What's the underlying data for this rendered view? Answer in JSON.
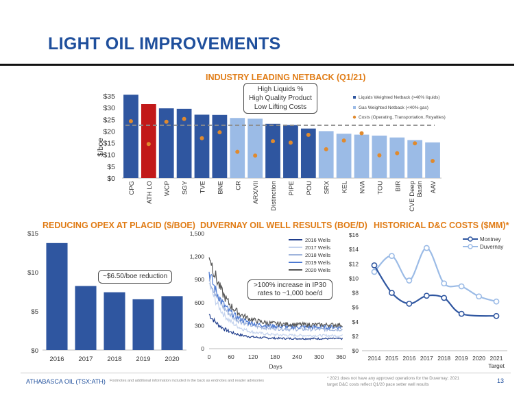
{
  "page": {
    "title": "LIGHT OIL IMPROVEMENTS",
    "footer_left": "ATHABASCA OIL (TSX:ATH)",
    "footer_mid": "Footnotes and additional information included in the back as endnotes and reader advisories",
    "footer_note_line1": "* 2021 does not have any approved operations for the Duvernay; 2021",
    "footer_note_line2": "target D&C costs reflect Q1/20 pace setter well results",
    "page_number": "13"
  },
  "colors": {
    "dark_blue": "#2f56a0",
    "light_blue": "#9bbbe6",
    "red": "#c21919",
    "orange": "#e08a2e",
    "title_blue": "#1f4f9c",
    "section_orange": "#e07b14"
  },
  "chart_data": [
    {
      "type": "bar",
      "title": "INDUSTRY LEADING NETBACK (Q1/21)",
      "ylabel": "$/boe",
      "ylim": [
        0,
        35
      ],
      "yticks": [
        "$0",
        "$5",
        "$10",
        "$15",
        "$20",
        "$25",
        "$30",
        "$35"
      ],
      "categories": [
        "CPG",
        "ATH LO",
        "WCP",
        "SGY",
        "TVE",
        "BNE",
        "CR",
        "ARX/VII",
        "Distinction",
        "PIPE",
        "POU",
        "SRX",
        "KEL",
        "NVA",
        "TOU",
        "BIR",
        "CVE Deep Basin",
        "AAV"
      ],
      "bar_types": [
        "liquids",
        "ath",
        "liquids",
        "liquids",
        "liquids",
        "liquids",
        "gas",
        "gas",
        "liquids",
        "liquids",
        "liquids",
        "gas",
        "gas",
        "gas",
        "gas",
        "gas",
        "gas",
        "gas"
      ],
      "netback": [
        35.5,
        31.5,
        29.7,
        29.5,
        27.0,
        26.9,
        25.6,
        25.3,
        23.1,
        22.6,
        21.1,
        20.0,
        18.9,
        18.5,
        18.1,
        17.3,
        16.2,
        15.2
      ],
      "costs": [
        24.2,
        14.5,
        24.0,
        25.2,
        17.0,
        19.5,
        11.2,
        9.6,
        15.7,
        15.1,
        18.4,
        12.3,
        16.0,
        19.1,
        9.7,
        10.6,
        14.8,
        7.3
      ],
      "average_line": 22.5,
      "legend": [
        "Liquids Weighted Netback (>40% liquids)",
        "Gas Weighted Netback (<40% gas)",
        "Costs (Operating, Transportation, Royalties)"
      ],
      "callout": [
        "High Liquids %",
        "High Quality Product",
        "Low Lifting Costs"
      ]
    },
    {
      "type": "bar",
      "title": "REDUCING OPEX AT PLACID ($/BOE)",
      "categories": [
        "2016",
        "2017",
        "2018",
        "2019",
        "2020"
      ],
      "values": [
        13.7,
        8.2,
        7.4,
        6.5,
        6.9
      ],
      "ylim": [
        0,
        15
      ],
      "yticks": [
        "$0",
        "$5",
        "$10",
        "$15"
      ],
      "callout": "~$6.50/boe reduction"
    },
    {
      "type": "line",
      "title": "DUVERNAY OIL WELL RESULTS (BOE/D)",
      "xlabel": "Days",
      "xticks": [
        "0",
        "60",
        "120",
        "180",
        "240",
        "300",
        "360"
      ],
      "yticks": [
        "0",
        "300",
        "600",
        "900",
        "1,200",
        "1,500"
      ],
      "xlim": [
        0,
        365
      ],
      "ylim": [
        0,
        1500
      ],
      "series": [
        {
          "name": "2016 Wells",
          "color": "#1f3d8c",
          "start": 450,
          "end": 130
        },
        {
          "name": "2017 Wells",
          "color": "#c4d3ee",
          "start": 850,
          "end": 170
        },
        {
          "name": "2018 Wells",
          "color": "#9fb4dc",
          "start": 950,
          "end": 250
        },
        {
          "name": "2019 Wells",
          "color": "#4c79d1",
          "start": 1000,
          "end": 280
        },
        {
          "name": "2020 Wells",
          "color": "#555555",
          "start": 1250,
          "end": 310
        }
      ],
      "callout": [
        ">100% increase in IP30",
        "rates to ~1,000 boe/d"
      ]
    },
    {
      "type": "line",
      "title": "HISTORICAL D&C COSTS ($MM)*",
      "categories": [
        "2014",
        "2015",
        "2016",
        "2017",
        "2018",
        "2019",
        "2020",
        "2021"
      ],
      "category_sub": "Target",
      "ylim": [
        0,
        16
      ],
      "yticks": [
        "$0",
        "$2",
        "$4",
        "$6",
        "$8",
        "$10",
        "$12",
        "$14",
        "$16"
      ],
      "series": [
        {
          "name": "Montney",
          "color": "#2f56a0",
          "values": [
            11.8,
            8.0,
            6.5,
            7.6,
            7.3,
            5.1,
            null,
            4.8
          ]
        },
        {
          "name": "Duvernay",
          "color": "#9bbbe6",
          "values": [
            10.9,
            13.1,
            9.7,
            14.2,
            9.3,
            8.9,
            7.5,
            6.8
          ]
        }
      ]
    }
  ]
}
